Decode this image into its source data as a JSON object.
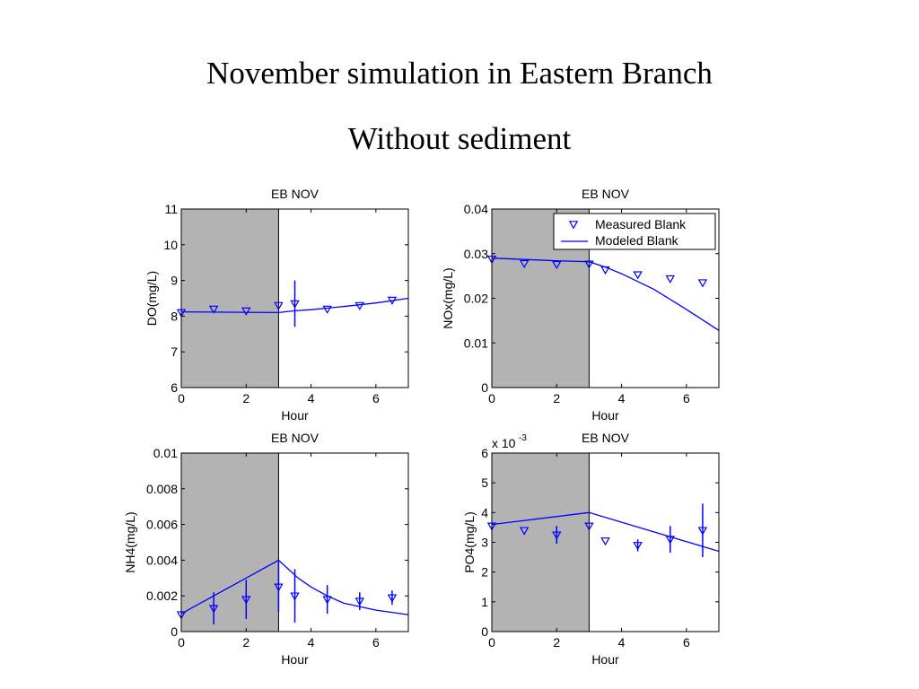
{
  "slide": {
    "title": "November simulation in Eastern Branch",
    "subtitle": "Without sediment"
  },
  "colors": {
    "series": "#0000ff",
    "shade": "#b3b3b3",
    "axis": "#000000"
  },
  "chart_data": [
    {
      "type": "line",
      "title": "EB NOV",
      "xlabel": "Hour",
      "ylabel": "DO(mg/L)",
      "xlim": [
        0,
        7
      ],
      "ylim": [
        6,
        11
      ],
      "xticks": [
        0,
        2,
        4,
        6
      ],
      "yticks": [
        6,
        7,
        8,
        9,
        10,
        11
      ],
      "shaded_x": [
        0,
        3
      ],
      "divider_x": 3,
      "grid": false,
      "series": [
        {
          "kind": "measured",
          "marker": "triangle-down",
          "x": [
            0,
            1,
            2,
            3,
            3.5,
            4.5,
            5.5,
            6.5
          ],
          "y": [
            8.1,
            8.2,
            8.15,
            8.3,
            8.35,
            8.2,
            8.3,
            8.45
          ],
          "err": [
            0,
            0,
            0,
            0,
            0.65,
            0,
            0,
            0
          ]
        },
        {
          "kind": "modeled",
          "x": [
            0,
            3,
            3.5,
            4,
            5,
            6,
            7
          ],
          "y": [
            8.12,
            8.1,
            8.15,
            8.18,
            8.27,
            8.37,
            8.5
          ]
        }
      ]
    },
    {
      "type": "line",
      "title": "EB NOV",
      "xlabel": "Hour",
      "ylabel": "NOx(mg/L)",
      "xlim": [
        0,
        7
      ],
      "ylim": [
        0,
        0.04
      ],
      "xticks": [
        0,
        2,
        4,
        6
      ],
      "yticks": [
        0,
        0.01,
        0.02,
        0.03,
        0.04
      ],
      "shaded_x": [
        0,
        3
      ],
      "divider_x": 3,
      "grid": false,
      "legend": {
        "position": "top-right",
        "entries": [
          "Measured Blank",
          "Modeled Blank"
        ]
      },
      "series": [
        {
          "kind": "measured",
          "name": "Measured Blank",
          "marker": "triangle-down",
          "x": [
            0,
            1,
            2,
            3,
            3.5,
            4.5,
            5.5,
            6.5
          ],
          "y": [
            0.0288,
            0.0278,
            0.0276,
            0.0277,
            0.0264,
            0.0253,
            0.0244,
            0.0235
          ],
          "err": [
            0,
            0,
            0,
            0,
            0,
            0,
            0,
            0
          ]
        },
        {
          "kind": "modeled",
          "name": "Modeled Blank",
          "x": [
            0,
            1,
            2,
            3,
            3.5,
            4,
            5,
            6,
            7
          ],
          "y": [
            0.029,
            0.0287,
            0.0284,
            0.0282,
            0.027,
            0.0255,
            0.022,
            0.0175,
            0.0128
          ]
        }
      ]
    },
    {
      "type": "line",
      "title": "EB NOV",
      "xlabel": "Hour",
      "ylabel": "NH4(mg/L)",
      "xlim": [
        0,
        7
      ],
      "ylim": [
        0,
        0.01
      ],
      "xticks": [
        0,
        2,
        4,
        6
      ],
      "yticks": [
        0,
        0.002,
        0.004,
        0.006,
        0.008,
        0.01
      ],
      "shaded_x": [
        0,
        3
      ],
      "divider_x": 3,
      "grid": false,
      "series": [
        {
          "kind": "measured",
          "marker": "triangle-down",
          "x": [
            0,
            1,
            2,
            3,
            3.5,
            4.5,
            5.5,
            6.5
          ],
          "y": [
            0.00095,
            0.0013,
            0.0018,
            0.0025,
            0.002,
            0.0018,
            0.0017,
            0.0019
          ],
          "err": [
            0,
            0.0009,
            0.0011,
            0.0014,
            0.0015,
            0.0008,
            0.0005,
            0.0004
          ]
        },
        {
          "kind": "modeled",
          "x": [
            0,
            1,
            2,
            3,
            3.3,
            3.6,
            4,
            4.5,
            5,
            6,
            7
          ],
          "y": [
            0.001,
            0.002,
            0.003,
            0.004,
            0.0035,
            0.003,
            0.0025,
            0.002,
            0.0016,
            0.0012,
            0.00095
          ]
        }
      ]
    },
    {
      "type": "line",
      "title": "EB NOV",
      "xlabel": "Hour",
      "ylabel": "PO4(mg/L)",
      "scale_label": "x 10",
      "scale_exponent": "-3",
      "xlim": [
        0,
        7
      ],
      "ylim": [
        0,
        6
      ],
      "xticks": [
        0,
        2,
        4,
        6
      ],
      "yticks": [
        0,
        1,
        2,
        3,
        4,
        5,
        6
      ],
      "shaded_x": [
        0,
        3
      ],
      "divider_x": 3,
      "grid": false,
      "series": [
        {
          "kind": "measured",
          "marker": "triangle-down",
          "x": [
            0,
            1,
            2,
            3,
            3.5,
            4.5,
            5.5,
            6.5
          ],
          "y": [
            3.55,
            3.4,
            3.25,
            3.55,
            3.05,
            2.9,
            3.1,
            3.4
          ],
          "err": [
            0,
            0,
            0.3,
            0,
            0,
            0.2,
            0.45,
            0.9
          ]
        },
        {
          "kind": "modeled",
          "x": [
            0,
            3,
            7
          ],
          "y": [
            3.6,
            4.0,
            2.7
          ]
        }
      ]
    }
  ]
}
